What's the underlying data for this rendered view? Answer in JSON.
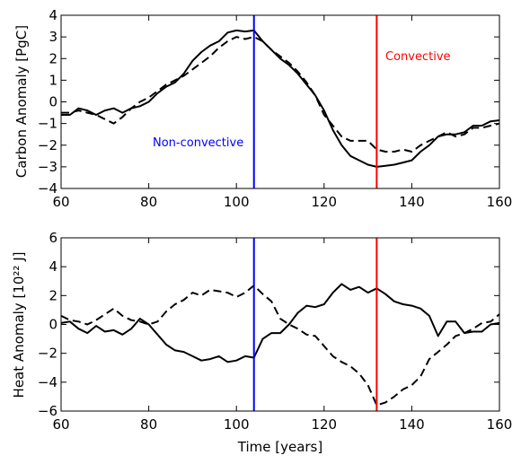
{
  "colors": {
    "non_convective": "#0000ff",
    "convective": "#ff0000",
    "series": "#000000"
  },
  "chart_data": [
    {
      "type": "line",
      "title": "",
      "xlabel": "",
      "ylabel": "Carbon Anomaly [PgC]",
      "xlim": [
        60,
        160
      ],
      "ylim": [
        -4,
        4
      ],
      "xticks": [
        60,
        80,
        100,
        120,
        140,
        160
      ],
      "yticks": [
        -4,
        -3,
        -2,
        -1,
        0,
        1,
        2,
        3,
        4
      ],
      "grid": false,
      "series": [
        {
          "style": "solid",
          "x": [
            60,
            62,
            64,
            66,
            68,
            70,
            72,
            74,
            76,
            78,
            80,
            82,
            84,
            86,
            88,
            90,
            92,
            94,
            96,
            98,
            100,
            102,
            104,
            106,
            108,
            110,
            112,
            114,
            116,
            118,
            120,
            122,
            124,
            126,
            128,
            130,
            132,
            134,
            136,
            138,
            140,
            142,
            144,
            146,
            148,
            150,
            152,
            154,
            156,
            158,
            160
          ],
          "values": [
            -0.6,
            -0.6,
            -0.3,
            -0.4,
            -0.6,
            -0.4,
            -0.3,
            -0.5,
            -0.3,
            -0.2,
            0.0,
            0.4,
            0.7,
            0.9,
            1.3,
            1.9,
            2.3,
            2.6,
            2.8,
            3.2,
            3.3,
            3.25,
            3.3,
            2.8,
            2.4,
            2.0,
            1.7,
            1.3,
            0.8,
            0.3,
            -0.4,
            -1.3,
            -2.0,
            -2.5,
            -2.7,
            -2.9,
            -3.0,
            -2.95,
            -2.9,
            -2.8,
            -2.7,
            -2.3,
            -2.0,
            -1.6,
            -1.5,
            -1.5,
            -1.4,
            -1.1,
            -1.1,
            -0.9,
            -0.85
          ]
        },
        {
          "style": "dashed",
          "x": [
            60,
            62,
            64,
            66,
            68,
            70,
            72,
            74,
            76,
            78,
            80,
            82,
            84,
            86,
            88,
            90,
            92,
            94,
            96,
            98,
            100,
            102,
            104,
            106,
            108,
            110,
            112,
            114,
            116,
            118,
            120,
            122,
            124,
            126,
            128,
            130,
            132,
            134,
            136,
            138,
            140,
            142,
            144,
            146,
            148,
            150,
            152,
            154,
            156,
            158,
            160
          ],
          "values": [
            -0.5,
            -0.5,
            -0.4,
            -0.5,
            -0.6,
            -0.8,
            -1.0,
            -0.7,
            -0.3,
            0.0,
            0.2,
            0.5,
            0.8,
            1.0,
            1.2,
            1.5,
            1.8,
            2.1,
            2.5,
            2.8,
            3.0,
            2.9,
            3.0,
            2.8,
            2.4,
            2.1,
            1.8,
            1.4,
            0.9,
            0.3,
            -0.6,
            -1.1,
            -1.6,
            -1.8,
            -1.8,
            -1.8,
            -2.2,
            -2.3,
            -2.3,
            -2.2,
            -2.3,
            -2.0,
            -1.8,
            -1.6,
            -1.4,
            -1.6,
            -1.5,
            -1.2,
            -1.2,
            -1.1,
            -1.0
          ]
        }
      ],
      "vlines": [
        {
          "x": 104,
          "color": "#0000ff",
          "label": "Non-convective"
        },
        {
          "x": 132,
          "color": "#ff0000",
          "label": "Convective"
        }
      ]
    },
    {
      "type": "line",
      "title": "",
      "xlabel": "Time [years]",
      "ylabel": "Heat Anomaly [10²² J]",
      "xlim": [
        60,
        160
      ],
      "ylim": [
        -6,
        6
      ],
      "xticks": [
        60,
        80,
        100,
        120,
        140,
        160
      ],
      "yticks": [
        -6,
        -4,
        -2,
        0,
        2,
        4,
        6
      ],
      "grid": false,
      "series": [
        {
          "style": "solid",
          "x": [
            60,
            62,
            64,
            66,
            68,
            70,
            72,
            74,
            76,
            78,
            80,
            82,
            84,
            86,
            88,
            90,
            92,
            94,
            96,
            98,
            100,
            102,
            104,
            106,
            108,
            110,
            112,
            114,
            116,
            118,
            120,
            122,
            124,
            126,
            128,
            130,
            132,
            134,
            136,
            138,
            140,
            142,
            144,
            146,
            148,
            150,
            152,
            154,
            156,
            158,
            160
          ],
          "values": [
            0.1,
            0.2,
            -0.3,
            -0.6,
            -0.1,
            -0.5,
            -0.4,
            -0.7,
            -0.3,
            0.4,
            0.0,
            -0.7,
            -1.4,
            -1.8,
            -1.9,
            -2.2,
            -2.5,
            -2.4,
            -2.2,
            -2.6,
            -2.5,
            -2.2,
            -2.3,
            -1.0,
            -0.6,
            -0.6,
            0.0,
            0.8,
            1.3,
            1.2,
            1.4,
            2.2,
            2.8,
            2.4,
            2.6,
            2.2,
            2.5,
            2.1,
            1.6,
            1.4,
            1.3,
            1.1,
            0.6,
            -0.8,
            0.2,
            0.2,
            -0.6,
            -0.5,
            -0.5,
            0.0,
            0.1
          ]
        },
        {
          "style": "dashed",
          "x": [
            60,
            62,
            64,
            66,
            68,
            70,
            72,
            74,
            76,
            78,
            80,
            82,
            84,
            86,
            88,
            90,
            92,
            94,
            96,
            98,
            100,
            102,
            104,
            106,
            108,
            110,
            112,
            114,
            116,
            118,
            120,
            122,
            124,
            126,
            128,
            130,
            132,
            134,
            136,
            138,
            140,
            142,
            144,
            146,
            148,
            150,
            152,
            154,
            156,
            158,
            160
          ],
          "values": [
            0.6,
            0.3,
            0.2,
            0.0,
            0.3,
            0.7,
            1.1,
            0.6,
            0.3,
            0.2,
            0.0,
            0.2,
            0.9,
            1.4,
            1.7,
            2.2,
            2.0,
            2.4,
            2.3,
            2.2,
            1.9,
            2.2,
            2.7,
            2.1,
            1.6,
            0.4,
            0.0,
            -0.3,
            -0.7,
            -0.8,
            -1.5,
            -2.2,
            -2.6,
            -2.9,
            -3.4,
            -4.2,
            -5.6,
            -5.4,
            -5.0,
            -4.5,
            -4.2,
            -3.6,
            -2.4,
            -1.9,
            -1.4,
            -0.8,
            -0.6,
            -0.3,
            0.1,
            0.2,
            0.7
          ]
        }
      ],
      "vlines": [
        {
          "x": 104,
          "color": "#0000ff"
        },
        {
          "x": 132,
          "color": "#ff0000"
        }
      ]
    }
  ]
}
